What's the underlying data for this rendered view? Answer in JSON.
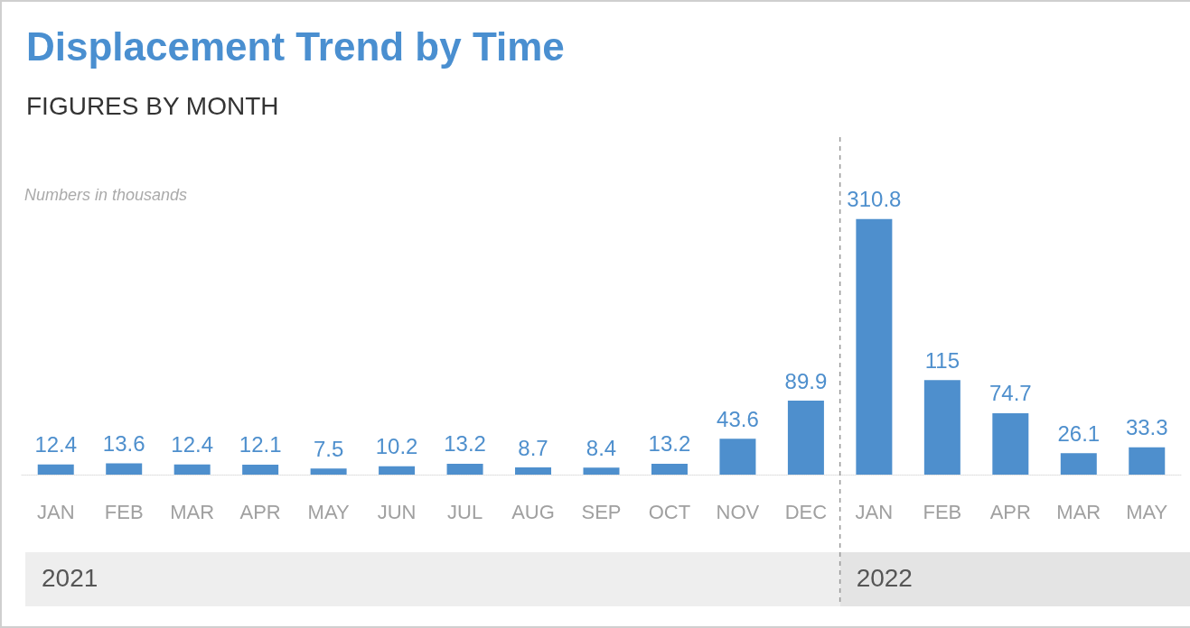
{
  "chart_data": {
    "type": "bar",
    "title": "Displacement Trend by Time",
    "subtitle": "FIGURES BY MONTH",
    "annotations": [
      "Numbers in thousands",
      "2021",
      "2022"
    ],
    "categories": [
      "JAN",
      "FEB",
      "MAR",
      "APR",
      "MAY",
      "JUN",
      "JUL",
      "AUG",
      "SEP",
      "OCT",
      "NOV",
      "DEC",
      "JAN",
      "FEB",
      "APR",
      "MAR",
      "MAY"
    ],
    "values": [
      12.4,
      13.6,
      12.4,
      12.1,
      7.5,
      10.2,
      13.2,
      8.7,
      8.4,
      13.2,
      43.6,
      89.9,
      310.8,
      115,
      74.7,
      26.1,
      33.3
    ],
    "color": "#4e8fcd",
    "data_labels": true,
    "grid": false
  }
}
